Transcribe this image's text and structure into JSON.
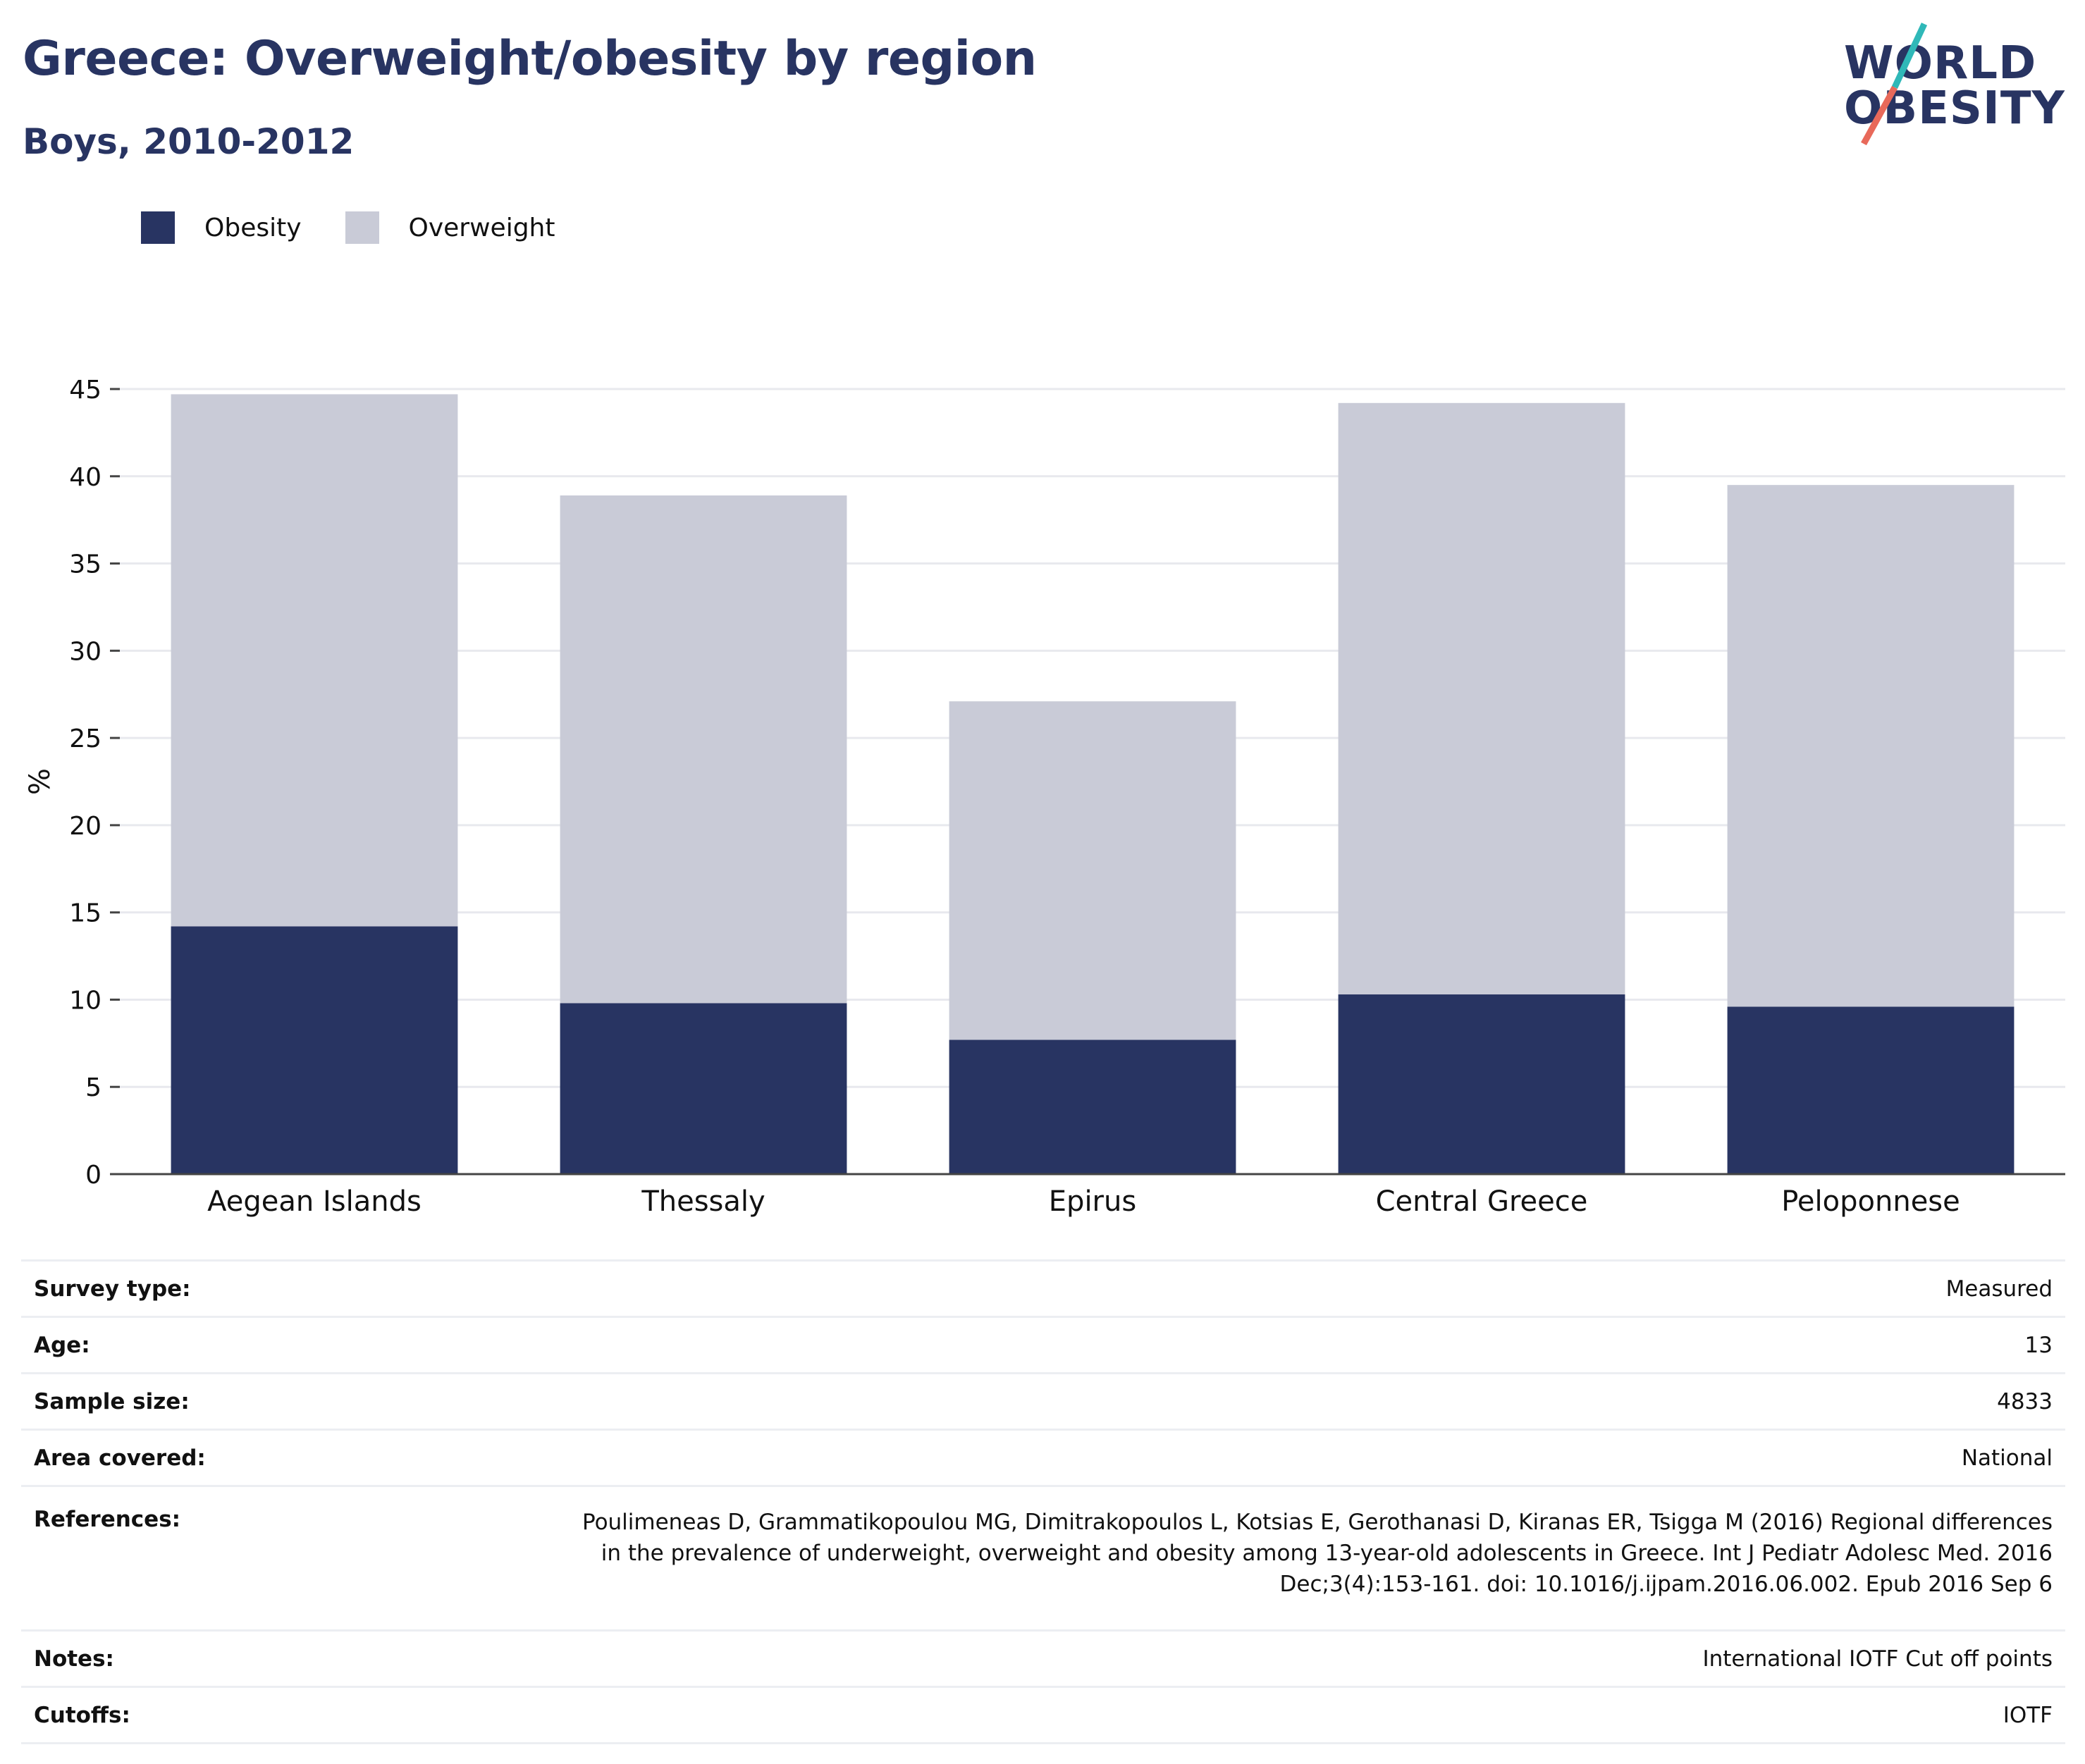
{
  "header": {
    "title": "Greece: Overweight/obesity by region",
    "subtitle": "Boys, 2010-2012"
  },
  "logo": {
    "line1": "WORLD",
    "line2": "OBESITY",
    "slash_colors": [
      "#2fb8b8",
      "#e8695a"
    ]
  },
  "legend": {
    "items": [
      {
        "label": "Obesity",
        "color": "#283462"
      },
      {
        "label": "Overweight",
        "color": "#c9cbd7"
      }
    ]
  },
  "chart_data": {
    "type": "bar",
    "stacked": true,
    "categories": [
      "Aegean Islands",
      "Thessaly",
      "Epirus",
      "Central Greece",
      "Peloponnese"
    ],
    "series": [
      {
        "name": "Obesity",
        "color": "#283462",
        "values": [
          14.2,
          9.8,
          7.7,
          10.3,
          9.6
        ]
      },
      {
        "name": "Overweight",
        "color": "#c9cbd7",
        "values": [
          30.5,
          29.1,
          19.4,
          33.9,
          29.9
        ]
      }
    ],
    "title": "Greece: Overweight/obesity by region",
    "subtitle": "Boys, 2010-2012",
    "xlabel": "",
    "ylabel": "%",
    "ylim": [
      0,
      45
    ],
    "yticks": [
      0,
      5,
      10,
      15,
      20,
      25,
      30,
      35,
      40,
      45
    ],
    "grid": true,
    "legend": "top-left"
  },
  "info": {
    "rows": [
      {
        "key": "Survey type:",
        "value": "Measured"
      },
      {
        "key": "Age:",
        "value": "13"
      },
      {
        "key": "Sample size:",
        "value": "4833"
      },
      {
        "key": "Area covered:",
        "value": "National"
      },
      {
        "key": "References:",
        "value": "Poulimeneas D, Grammatikopoulou MG, Dimitrakopoulos L, Kotsias E, Gerothanasi D, Kiranas ER, Tsigga M (2016) Regional differences\nin the prevalence of underweight, overweight and obesity among 13-year-old adolescents in Greece. Int J Pediatr Adolesc Med. 2016\nDec;3(4):153-161. doi: 10.1016/j.ijpam.2016.06.002. Epub 2016 Sep 6"
      },
      {
        "key": "Notes:",
        "value": "International IOTF Cut off points"
      },
      {
        "key": "Cutoffs:",
        "value": "IOTF"
      }
    ]
  }
}
